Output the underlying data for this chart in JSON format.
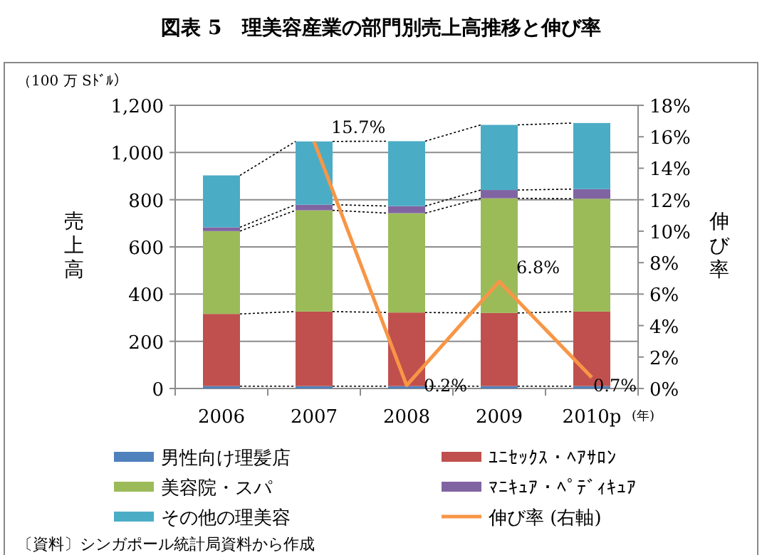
{
  "chart_data": {
    "type": "bar",
    "title": "図表 5　理美容産業の部門別売上高推移と伸び率",
    "xlabel": "(年)",
    "ylabel": "売上高",
    "y2label": "伸び率",
    "annotations": [
      "（100 万 Sﾄﾞﾙ）",
      "〔資料〕シンガポール統計局資料から作成"
    ],
    "categories": [
      "2006",
      "2007",
      "2008",
      "2009",
      "2010p"
    ],
    "stacked": true,
    "grid": "y",
    "legend": "bottom",
    "marker": "none",
    "ylim": [
      0,
      1200
    ],
    "yticks": [
      0,
      200,
      400,
      600,
      800,
      {
        "value": 1000,
        "label": "1,000"
      },
      {
        "value": 1200,
        "label": "1,200"
      }
    ],
    "y2lim": [
      0,
      18
    ],
    "y2ticks": [
      {
        "value": 0,
        "label": "0%"
      },
      {
        "value": 2,
        "label": "2%"
      },
      {
        "value": 4,
        "label": "4%"
      },
      {
        "value": 6,
        "label": "6%"
      },
      {
        "value": 8,
        "label": "8%"
      },
      {
        "value": 10,
        "label": "10%"
      },
      {
        "value": 12,
        "label": "12%"
      },
      {
        "value": 14,
        "label": "14%"
      },
      {
        "value": 16,
        "label": "16%"
      },
      {
        "value": 18,
        "label": "18%"
      }
    ],
    "series": [
      {
        "name": "男性向け理髪店",
        "color": "#4f81bd",
        "values": [
          10,
          10,
          10,
          10,
          10
        ]
      },
      {
        "name": "ﾕﾆｾｯｸｽ・ﾍｱｻﾛﾝ",
        "color": "#c0504d",
        "values": [
          306,
          316,
          312,
          310,
          316
        ]
      },
      {
        "name": "美容院・スパ",
        "color": "#9bbb59",
        "values": [
          351,
          429,
          421,
          486,
          478
        ]
      },
      {
        "name": "ﾏﾆｷｭｱ・ﾍﾟﾃﾞｨｷｭｱ",
        "color": "#8064a2",
        "values": [
          16,
          24,
          30,
          35,
          41
        ]
      },
      {
        "name": "その他の理美容",
        "color": "#4bacc6",
        "values": [
          220,
          268,
          275,
          276,
          280
        ]
      },
      {
        "name": "伸び率 (右軸)",
        "type": "line",
        "axis": "y2",
        "color": "#f79646",
        "line_style": "solid",
        "values": [
          null,
          15.7,
          0.2,
          6.8,
          0.7
        ],
        "value_labels": [
          null,
          "15.7%",
          "0.2%",
          "6.8%",
          "0.7%"
        ]
      }
    ]
  }
}
